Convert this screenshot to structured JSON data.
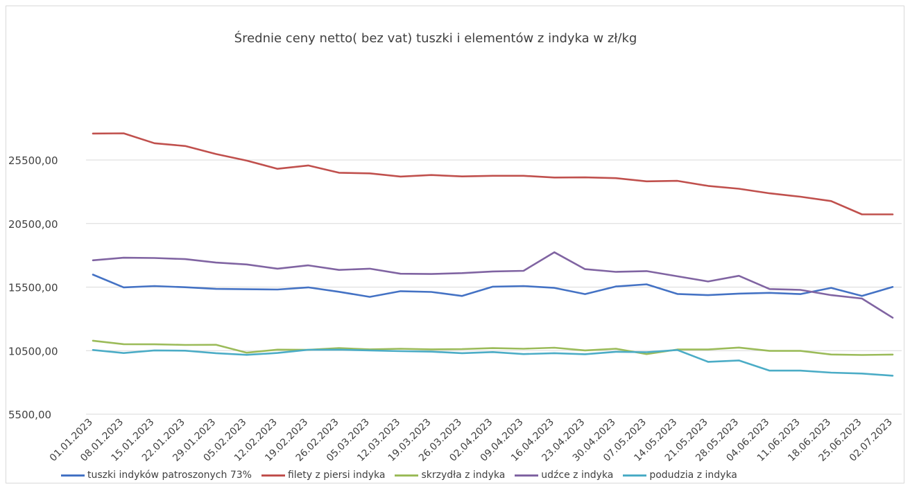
{
  "chart_data": {
    "type": "line",
    "title": "Średnie ceny netto( bez vat) tuszki i elementów z indyka w zł/kg",
    "xlabel": "",
    "ylabel": "",
    "ylim": [
      5500,
      25500
    ],
    "yticks": [
      "5500,00",
      "10500,00",
      "15500,00",
      "20500,00",
      "25500,00"
    ],
    "grid": true,
    "legend_position": "bottom",
    "categories": [
      "01.01.2023",
      "08.01.2023",
      "15.01.2023",
      "22.01.2023",
      "29.01.2023",
      "05.02.2023",
      "12.02.2023",
      "19.02.2023",
      "26.02.2023",
      "05.03.2023",
      "12.03.2023",
      "19.03.2023",
      "26.03.2023",
      "02.04.2023",
      "09.04.2023",
      "16.04.2023",
      "23.04.2023",
      "30.04.2023",
      "07.05.2023",
      "14.05.2023",
      "21.05.2023",
      "28.05.2023",
      "04.06.2023",
      "11.06.2023",
      "18.06.2023",
      "25.06.2023",
      "02.07.2023"
    ],
    "series": [
      {
        "name": "tuszki indyków patroszonych 73%",
        "color": "#4472c4",
        "values": [
          16480,
          15480,
          15580,
          15490,
          15360,
          15330,
          15310,
          15480,
          15130,
          14730,
          15180,
          15120,
          14800,
          15530,
          15580,
          15440,
          14950,
          15550,
          15720,
          14960,
          14870,
          14990,
          15050,
          14950,
          15440,
          14800,
          15510
        ]
      },
      {
        "name": "filety z piersi indyka",
        "color": "#c0504d",
        "values": [
          27580,
          27600,
          26820,
          26600,
          25970,
          25450,
          24810,
          25070,
          24500,
          24450,
          24200,
          24320,
          24210,
          24260,
          24260,
          24120,
          24130,
          24070,
          23820,
          23860,
          23460,
          23240,
          22880,
          22610,
          22270,
          21220,
          21220
        ]
      },
      {
        "name": "skrzydła z indyka",
        "color": "#9bbb59",
        "values": [
          11280,
          11010,
          11000,
          10950,
          10960,
          10340,
          10580,
          10560,
          10700,
          10600,
          10650,
          10600,
          10620,
          10700,
          10650,
          10730,
          10520,
          10650,
          10230,
          10590,
          10590,
          10740,
          10480,
          10480,
          10200,
          10160,
          10190
        ]
      },
      {
        "name": "udźce z indyka",
        "color": "#8064a2",
        "values": [
          17610,
          17810,
          17790,
          17700,
          17430,
          17280,
          16950,
          17210,
          16850,
          16950,
          16550,
          16530,
          16600,
          16730,
          16780,
          18240,
          16910,
          16700,
          16760,
          16350,
          15940,
          16390,
          15350,
          15280,
          14870,
          14600,
          13090
        ]
      },
      {
        "name": "podudzia z indyka",
        "color": "#4bacc6",
        "values": [
          10550,
          10310,
          10520,
          10500,
          10300,
          10170,
          10320,
          10570,
          10580,
          10520,
          10460,
          10420,
          10300,
          10390,
          10230,
          10300,
          10220,
          10410,
          10380,
          10550,
          9620,
          9730,
          8930,
          8930,
          8770,
          8700,
          8530
        ]
      }
    ]
  }
}
